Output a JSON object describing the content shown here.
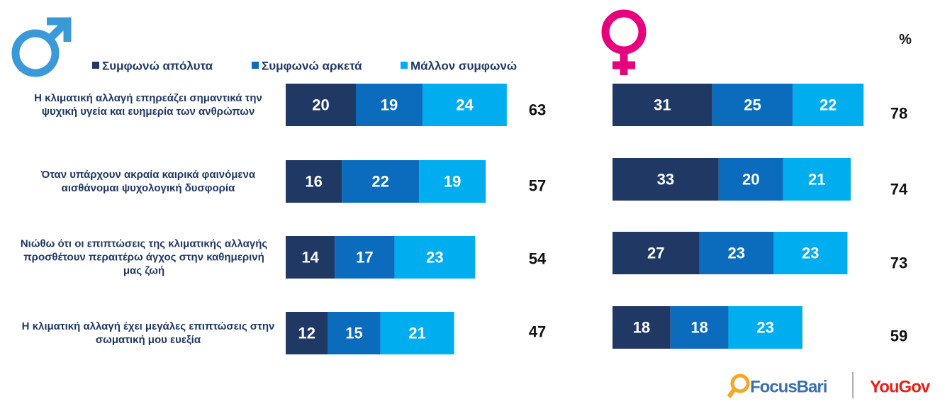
{
  "chart_data": [
    {
      "type": "bar",
      "orientation": "horizontal",
      "stacked": true,
      "categories": [
        "Η κλιματική αλλαγή επηρεάζει σημαντικά την ψυχική υγεία και ευημερία των ανθρώπων",
        "Όταν υπάρχουν ακραία καιρικά φαινόμενα αισθάνομαι ψυχολογική δυσφορία",
        "Νιώθω ότι οι επιπτώσεις της κλιματικής αλλαγής προσθέτουν περαιτέρω άγχος στην καθημερινή μας ζωή",
        "Η κλιματική αλλαγή έχει μεγάλες επιπτώσεις στην σωματική μου ευεξία"
      ],
      "series": [
        {
          "name": "Συμφωνώ απόλυτα",
          "color": "#203864",
          "values": [
            20,
            16,
            14,
            12
          ]
        },
        {
          "name": "Συμφωνώ αρκετά",
          "color": "#0b6cbd",
          "values": [
            19,
            22,
            17,
            15
          ]
        },
        {
          "name": "Μάλλον συμφωνώ",
          "color": "#00adef",
          "values": [
            24,
            19,
            23,
            21
          ]
        }
      ],
      "totals": [
        63,
        57,
        54,
        47
      ]
    },
    {
      "type": "bar",
      "orientation": "horizontal",
      "stacked": true,
      "unit": "%",
      "series": [
        {
          "color": "#203864",
          "values": [
            31,
            33,
            27,
            18
          ]
        },
        {
          "color": "#0b6cbd",
          "values": [
            25,
            20,
            23,
            18
          ]
        },
        {
          "color": "#00adef",
          "values": [
            22,
            21,
            23,
            23
          ]
        }
      ],
      "totals": [
        78,
        74,
        73,
        59
      ]
    }
  ],
  "logos": [
    "FocusBari",
    "YouGov"
  ]
}
